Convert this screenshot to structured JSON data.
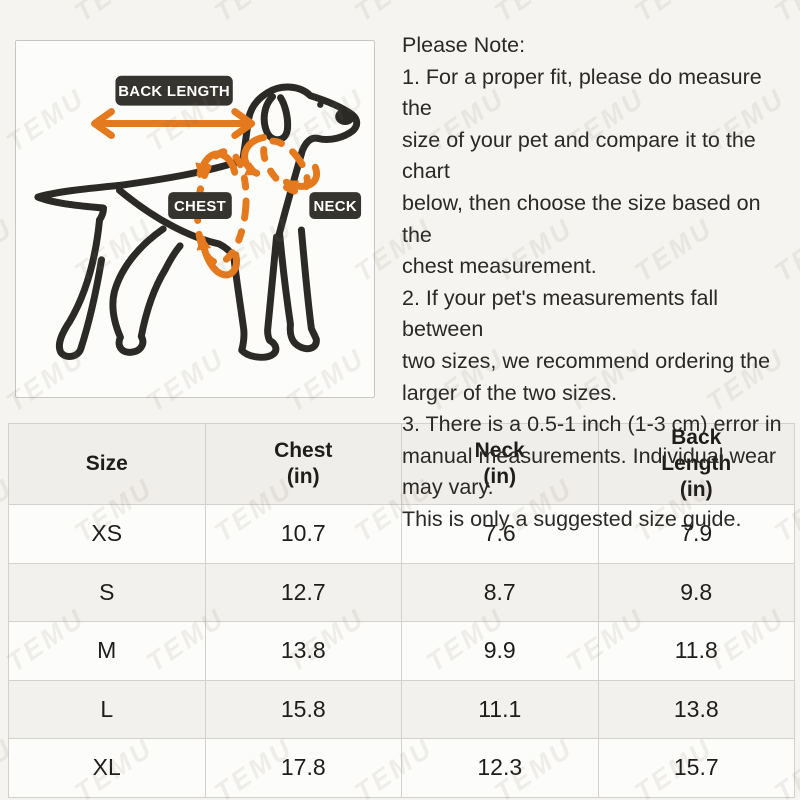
{
  "watermark": {
    "text": "TEMU"
  },
  "note": {
    "title": "Please Note:",
    "body": "1. For a proper fit, please do measure the\nsize of your pet and compare it to the chart\nbelow, then choose the size based on the\nchest measurement.\n2. If your pet's measurements fall between\ntwo sizes, we recommend ordering the\nlarger of the two sizes.\n3. There is a 0.5-1 inch (1-3 cm) error in\nmanual measurements. Individual wear\nmay vary.\nThis is only a suggested size guide."
  },
  "diagram": {
    "back_length_label": "BACK LENGTH",
    "chest_label": "CHEST",
    "neck_label": "NECK",
    "colors": {
      "arrow_orange": "#e5791d",
      "label_bg": "#35342f",
      "label_text": "#ffffff",
      "dog_outline": "#2b2a27"
    }
  },
  "size_table": {
    "headers": {
      "size": "Size",
      "chest": "Chest\n(in)",
      "neck": "Neck\n(in)",
      "back_length": "Back\nLength\n(in)"
    },
    "rows": [
      {
        "size": "XS",
        "chest": "10.7",
        "neck": "7.6",
        "back_length": "7.9"
      },
      {
        "size": "S",
        "chest": "12.7",
        "neck": "8.7",
        "back_length": "9.8"
      },
      {
        "size": "M",
        "chest": "13.8",
        "neck": "9.9",
        "back_length": "11.8"
      },
      {
        "size": "L",
        "chest": "15.8",
        "neck": "11.1",
        "back_length": "13.8"
      },
      {
        "size": "XL",
        "chest": "17.8",
        "neck": "12.3",
        "back_length": "15.7"
      }
    ]
  },
  "chart_data": {
    "type": "table",
    "columns": [
      "Size",
      "Chest (in)",
      "Neck (in)",
      "Back Length (in)"
    ],
    "rows": [
      [
        "XS",
        "10.7",
        "7.6",
        "7.9"
      ],
      [
        "S",
        "12.7",
        "8.7",
        "9.8"
      ],
      [
        "M",
        "13.8",
        "9.9",
        "11.8"
      ],
      [
        "L",
        "15.8",
        "11.1",
        "13.8"
      ],
      [
        "XL",
        "17.8",
        "12.3",
        "15.7"
      ]
    ]
  }
}
